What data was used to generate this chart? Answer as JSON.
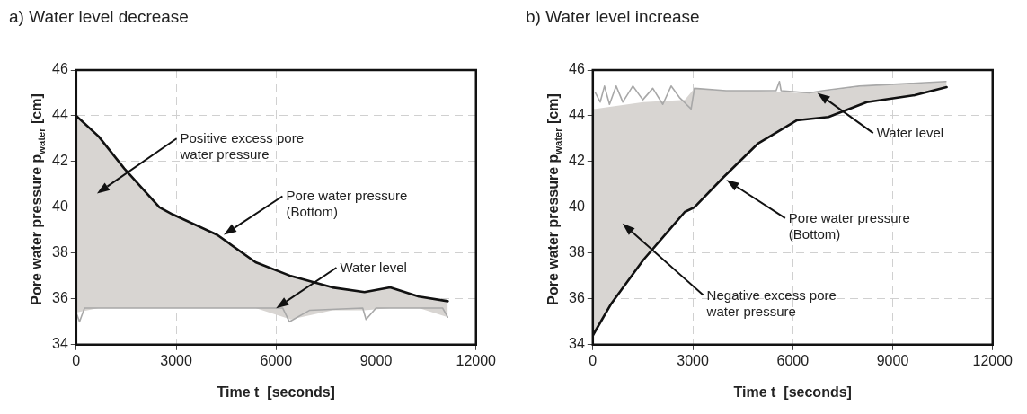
{
  "chart_data": [
    {
      "type": "line",
      "title": "a) Water level decrease",
      "xlabel": "Time t  [seconds]",
      "ylabel": "Pore water pressure p$_{water}$ [cm]",
      "xlim": [
        0,
        12000
      ],
      "xticks": [
        0,
        3000,
        6000,
        9000,
        12000
      ],
      "ylim": [
        34,
        46
      ],
      "yticks": [
        34,
        36,
        38,
        40,
        42,
        44,
        46
      ],
      "grid": true,
      "legend": false,
      "marker": "none",
      "line_style": "solid",
      "series": [
        {
          "color": "#111111",
          "x": [
            0,
            673,
            1442,
            2500,
            2885,
            4231,
            5385,
            6442,
            7692,
            8654,
            9423,
            10288,
            11154
          ],
          "values": [
            44.0,
            43.1,
            41.7,
            40.0,
            39.7,
            38.8,
            37.6,
            37.0,
            36.5,
            36.3,
            36.5,
            36.1,
            35.9
          ],
          "lower": [
            35.4,
            35.6,
            35.6,
            35.6,
            35.6,
            35.6,
            35.6,
            35.1,
            35.5,
            35.5,
            35.6,
            35.6,
            35.2
          ],
          "upper": [
            44.0,
            43.1,
            41.7,
            40.0,
            39.7,
            38.8,
            37.6,
            37.0,
            36.5,
            36.3,
            36.5,
            36.1,
            35.9
          ]
        },
        {
          "color": "#a8a8a8",
          "x": [
            0,
            100,
            250,
            3000,
            6200,
            6400,
            7000,
            8600,
            8700,
            9000,
            11000,
            11150
          ],
          "values": [
            35.4,
            35.0,
            35.6,
            35.6,
            35.6,
            35.0,
            35.5,
            35.6,
            35.1,
            35.6,
            35.6,
            35.2
          ]
        }
      ],
      "annotations": [
        "Positive excess pore water pressure",
        "Pore water pressure (Bottom)",
        "Water level"
      ]
    },
    {
      "type": "line",
      "title": "b) Water level increase",
      "xlabel": "Time t  [seconds]",
      "ylabel": "Pore water pressure p$_{water}$ [cm]",
      "xlim": [
        0,
        12000
      ],
      "xticks": [
        0,
        3000,
        6000,
        9000,
        12000
      ],
      "ylim": [
        34,
        46
      ],
      "yticks": [
        34,
        36,
        38,
        40,
        42,
        44,
        46
      ],
      "grid": true,
      "legend": false,
      "marker": "none",
      "line_style": "solid",
      "series": [
        {
          "color": "#111111",
          "x": [
            0,
            77,
            556,
            1514,
            2760,
            3048,
            3910,
            4965,
            6115,
            7073,
            8223,
            9661,
            10619
          ],
          "values": [
            34.4,
            34.6,
            35.8,
            37.7,
            39.8,
            40.0,
            41.3,
            42.8,
            43.8,
            43.95,
            44.6,
            44.9,
            45.25
          ],
          "lower": [
            34.4,
            34.6,
            35.8,
            37.7,
            39.8,
            40.0,
            41.3,
            42.8,
            43.8,
            43.95,
            44.6,
            44.9,
            45.25
          ],
          "upper": [
            44.3,
            44.3,
            44.4,
            44.6,
            44.7,
            45.2,
            45.1,
            45.1,
            45.0,
            45.1,
            45.3,
            45.4,
            45.5
          ]
        },
        {
          "color": "#a8a8a8",
          "x": [
            77,
            220,
            350,
            500,
            700,
            900,
            1200,
            1500,
            1800,
            2100,
            2350,
            2600,
            2950,
            3050,
            4000,
            5500,
            5600,
            5650,
            6500,
            6900,
            8000,
            10600
          ],
          "values": [
            45.0,
            44.6,
            45.3,
            44.5,
            45.3,
            44.6,
            45.3,
            44.7,
            45.2,
            44.5,
            45.3,
            44.8,
            44.3,
            45.2,
            45.1,
            45.1,
            45.5,
            45.1,
            45.0,
            45.1,
            45.3,
            45.5
          ]
        }
      ],
      "annotations": [
        "Water level",
        "Pore water pressure (Bottom)",
        "Negative excess pore water pressure"
      ]
    }
  ]
}
